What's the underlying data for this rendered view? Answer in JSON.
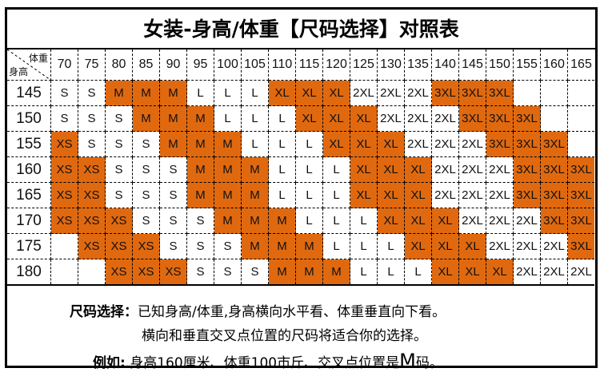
{
  "title": "女装-身高/体重【尺码选择】对照表",
  "corner": {
    "weight_label": "体重",
    "height_label": "身高"
  },
  "highlight_color": "#E0690F",
  "highlighted_sizes": [
    "XS",
    "M",
    "XL",
    "3XL"
  ],
  "weights": [
    "70",
    "75",
    "80",
    "85",
    "90",
    "95",
    "100",
    "105",
    "110",
    "115",
    "120",
    "125",
    "130",
    "135",
    "140",
    "145",
    "150",
    "155",
    "160",
    "165"
  ],
  "rows": [
    {
      "height": "145",
      "sizes": [
        "S",
        "S",
        "M",
        "M",
        "M",
        "L",
        "L",
        "L",
        "XL",
        "XL",
        "XL",
        "2XL",
        "2XL",
        "2XL",
        "3XL",
        "3XL",
        "3XL",
        "",
        "",
        ""
      ]
    },
    {
      "height": "150",
      "sizes": [
        "S",
        "S",
        "S",
        "M",
        "M",
        "M",
        "L",
        "L",
        "L",
        "XL",
        "XL",
        "XL",
        "2XL",
        "2XL",
        "2XL",
        "3XL",
        "3XL",
        "3XL",
        "",
        ""
      ]
    },
    {
      "height": "155",
      "sizes": [
        "XS",
        "S",
        "S",
        "S",
        "M",
        "M",
        "M",
        "L",
        "L",
        "L",
        "XL",
        "XL",
        "XL",
        "2XL",
        "2XL",
        "2XL",
        "3XL",
        "3XL",
        "3XL",
        ""
      ]
    },
    {
      "height": "160",
      "sizes": [
        "XS",
        "XS",
        "S",
        "S",
        "S",
        "M",
        "M",
        "M",
        "L",
        "L",
        "L",
        "XL",
        "XL",
        "XL",
        "2XL",
        "2XL",
        "2XL",
        "3XL",
        "3XL",
        "3XL"
      ]
    },
    {
      "height": "165",
      "sizes": [
        "XS",
        "XS",
        "S",
        "S",
        "S",
        "M",
        "M",
        "M",
        "L",
        "L",
        "L",
        "XL",
        "XL",
        "XL",
        "2XL",
        "2XL",
        "2XL",
        "3XL",
        "3XL",
        "3XL"
      ]
    },
    {
      "height": "170",
      "sizes": [
        "XS",
        "XS",
        "XS",
        "S",
        "S",
        "S",
        "M",
        "M",
        "M",
        "L",
        "L",
        "L",
        "XL",
        "XL",
        "XL",
        "2XL",
        "2XL",
        "2XL",
        "3XL",
        "3XL"
      ]
    },
    {
      "height": "175",
      "sizes": [
        "",
        "XS",
        "XS",
        "XS",
        "S",
        "S",
        "S",
        "M",
        "M",
        "M",
        "L",
        "L",
        "L",
        "XL",
        "XL",
        "XL",
        "2XL",
        "2XL",
        "2XL",
        "3XL"
      ]
    },
    {
      "height": "180",
      "sizes": [
        "",
        "",
        "XS",
        "XS",
        "XS",
        "S",
        "S",
        "S",
        "M",
        "M",
        "M",
        "L",
        "L",
        "L",
        "XL",
        "XL",
        "XL",
        "2XL",
        "2XL",
        "2XL"
      ]
    }
  ],
  "notes": {
    "label1": "尺码选择：",
    "line1": "已知身高/体重,身高横向水平看、体重垂直向下看。",
    "line2": "横向和垂直交叉点位置的尺码将适合你的选择。",
    "label3": "例如:",
    "line3a": " 身高160厘米、体重100市斤、交叉点位置是",
    "line3m": "M",
    "line3b": "码。"
  }
}
